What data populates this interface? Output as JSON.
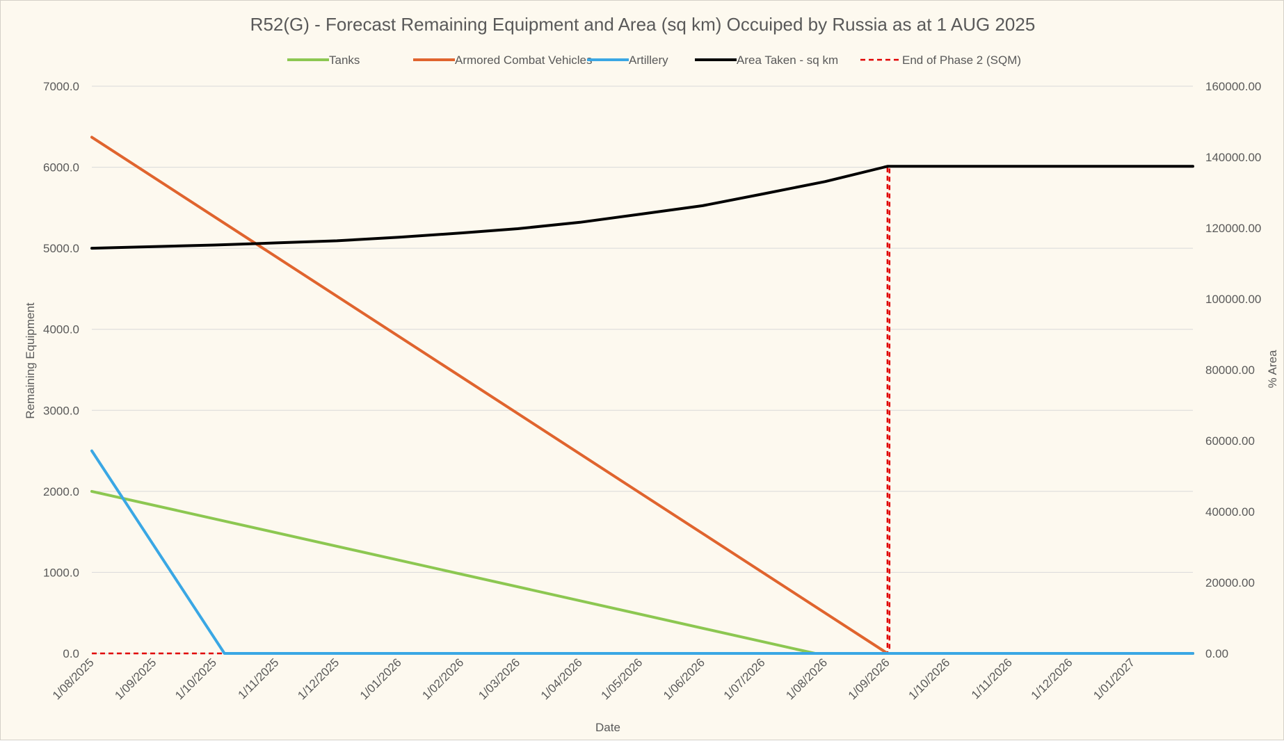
{
  "chart_data": {
    "type": "line",
    "title": "R52(G) - Forecast Remaining Equipment and Area (sq km) Occuiped by Russia as at 1 AUG 2025",
    "xlabel": "Date",
    "ylabel": "Remaining Equipment",
    "y2label": "% Area",
    "ylim": [
      0,
      7000
    ],
    "y2lim": [
      0,
      160000
    ],
    "grid": true,
    "legend_position": "top",
    "x_ticks": [
      "1/08/2025",
      "1/09/2025",
      "1/10/2025",
      "1/11/2025",
      "1/12/2025",
      "1/01/2026",
      "1/02/2026",
      "1/03/2026",
      "1/04/2026",
      "1/05/2026",
      "1/06/2026",
      "1/07/2026",
      "1/08/2026",
      "1/09/2026",
      "1/10/2026",
      "1/11/2026",
      "1/12/2026",
      "1/01/2027"
    ],
    "x_range": [
      "2025-08-01",
      "2027-01-31"
    ],
    "y_ticks": [
      "0.0",
      "1000.0",
      "2000.0",
      "3000.0",
      "4000.0",
      "5000.0",
      "6000.0",
      "7000.0"
    ],
    "y2_ticks": [
      "0.00",
      "20000.00",
      "40000.00",
      "60000.00",
      "80000.00",
      "100000.00",
      "120000.00",
      "140000.00",
      "160000.00"
    ],
    "series": [
      {
        "name": "Tanks",
        "axis": "left",
        "color": "#8cc751",
        "style": "solid",
        "x": [
          "2025-08-01",
          "2026-07-27",
          "2027-01-31"
        ],
        "y": [
          2000,
          0,
          0
        ]
      },
      {
        "name": "Armored Combat Vehicles",
        "axis": "left",
        "color": "#e0642e",
        "style": "solid",
        "x": [
          "2025-08-01",
          "2026-09-01",
          "2027-01-31"
        ],
        "y": [
          6370,
          0,
          0
        ]
      },
      {
        "name": "Artillery",
        "axis": "left",
        "color": "#3aa7e4",
        "style": "solid",
        "x": [
          "2025-08-01",
          "2025-10-06",
          "2027-01-31"
        ],
        "y": [
          2500,
          0,
          0
        ]
      },
      {
        "name": "Area Taken - sq km",
        "axis": "right",
        "color": "#000000",
        "style": "solid",
        "x": [
          "2025-08-01",
          "2025-10-01",
          "2025-11-01",
          "2025-12-01",
          "2026-01-01",
          "2026-02-01",
          "2026-03-01",
          "2026-04-01",
          "2026-05-01",
          "2026-06-01",
          "2026-07-01",
          "2026-08-01",
          "2026-09-01",
          "2027-01-31"
        ],
        "y": [
          114300,
          115200,
          115800,
          116400,
          117400,
          118600,
          119800,
          121600,
          123900,
          126300,
          129600,
          133100,
          137400,
          137400
        ]
      },
      {
        "name": "End of Phase 2 (SQM)",
        "axis": "left",
        "color": "#e00000",
        "style": "dashed",
        "x": [
          "2025-08-01",
          "2026-09-01",
          "2026-09-01",
          "2026-09-02",
          "2026-09-02",
          "2027-01-31"
        ],
        "y": [
          0,
          0,
          6000,
          6000,
          0,
          0
        ]
      }
    ]
  }
}
